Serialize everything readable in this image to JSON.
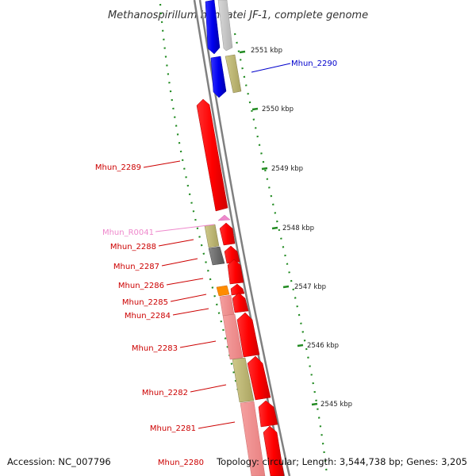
{
  "title": "Methanospirillum hungatei JF-1, complete genome",
  "accession_label": "Accession: NC_007796",
  "summary_label": "Topology: circular; Length: 3,544,738 bp; Genes: 3,205",
  "scale_ticks": [
    "2551 kbp",
    "2550 kbp",
    "2549 kbp",
    "2548 kbp",
    "2547 kbp",
    "2546 kbp",
    "2545 kbp"
  ],
  "genes": [
    {
      "id": "Mhun_2290",
      "color": "#0000cc"
    },
    {
      "id": "Mhun_2289",
      "color": "#cc0000"
    },
    {
      "id": "Mhun_R0041",
      "color": "#ee88cc"
    },
    {
      "id": "Mhun_2288",
      "color": "#cc0000"
    },
    {
      "id": "Mhun_2287",
      "color": "#cc0000"
    },
    {
      "id": "Mhun_2286",
      "color": "#cc0000"
    },
    {
      "id": "Mhun_2285",
      "color": "#cc0000"
    },
    {
      "id": "Mhun_2284",
      "color": "#cc0000"
    },
    {
      "id": "Mhun_2283",
      "color": "#cc0000"
    },
    {
      "id": "Mhun_2282",
      "color": "#cc0000"
    },
    {
      "id": "Mhun_2281",
      "color": "#cc0000"
    },
    {
      "id": "Mhun_2280",
      "color": "#cc0000"
    }
  ],
  "colors": {
    "cds_red": "#ff0000",
    "cds_pink": "#f08c8c",
    "cds_blue": "#0000ff",
    "cds_olive": "#bdb76b",
    "cds_gray": "#707070",
    "cds_orange": "#ff8c00",
    "trna_pink": "#ee88cc",
    "backbone": "#808080",
    "dotted_ring": "#228b22"
  }
}
